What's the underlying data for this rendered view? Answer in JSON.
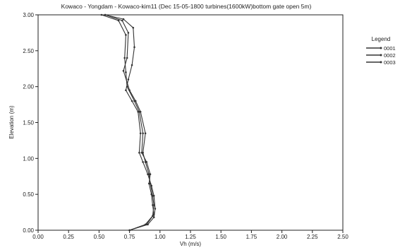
{
  "chart_data": {
    "type": "line",
    "title": "Kowaco - Yongdam - Kowaco-kim11 (Dec 15-05-1800 turbines(1600kW)bottom gate open  5m)",
    "xlabel": "Vh (m/s)",
    "ylabel": "Elevation (m)",
    "xlim": [
      0.0,
      2.5
    ],
    "ylim": [
      0.0,
      3.0
    ],
    "x_ticks": [
      "0.00",
      "0.25",
      "0.50",
      "0.75",
      "1.00",
      "1.25",
      "1.50",
      "1.75",
      "2.00",
      "2.25",
      "2.50"
    ],
    "y_ticks": [
      "0.00",
      "0.50",
      "1.00",
      "1.50",
      "2.00",
      "2.50",
      "3.00"
    ],
    "x_tick_values": [
      0,
      0.25,
      0.5,
      0.75,
      1.0,
      1.25,
      1.5,
      1.75,
      2.0,
      2.25,
      2.5
    ],
    "y_tick_values": [
      0,
      0.5,
      1.0,
      1.5,
      2.0,
      2.5,
      3.0
    ],
    "grid": false,
    "legend": {
      "title": "Legend",
      "placement": "right"
    },
    "series": [
      {
        "name": "0001",
        "color": "#333333",
        "points": [
          [
            0.75,
            0.0
          ],
          [
            0.9,
            0.08
          ],
          [
            0.95,
            0.18
          ],
          [
            0.96,
            0.3
          ],
          [
            0.95,
            0.48
          ],
          [
            0.93,
            0.62
          ],
          [
            0.9,
            0.78
          ],
          [
            0.86,
            0.95
          ],
          [
            0.83,
            1.08
          ],
          [
            0.84,
            1.35
          ],
          [
            0.82,
            1.65
          ],
          [
            0.77,
            1.8
          ],
          [
            0.72,
            1.95
          ],
          [
            0.74,
            2.1
          ],
          [
            0.77,
            2.3
          ],
          [
            0.79,
            2.55
          ],
          [
            0.78,
            2.82
          ],
          [
            0.7,
            2.94
          ],
          [
            0.55,
            3.0
          ]
        ]
      },
      {
        "name": "0002",
        "color": "#333333",
        "points": [
          [
            0.75,
            0.0
          ],
          [
            0.88,
            0.08
          ],
          [
            0.94,
            0.2
          ],
          [
            0.95,
            0.35
          ],
          [
            0.94,
            0.48
          ],
          [
            0.92,
            0.65
          ],
          [
            0.91,
            0.78
          ],
          [
            0.88,
            0.95
          ],
          [
            0.86,
            1.08
          ],
          [
            0.88,
            1.35
          ],
          [
            0.84,
            1.65
          ],
          [
            0.8,
            1.8
          ],
          [
            0.75,
            1.95
          ],
          [
            0.7,
            2.22
          ],
          [
            0.73,
            2.4
          ],
          [
            0.74,
            2.75
          ],
          [
            0.69,
            2.92
          ],
          [
            0.55,
            3.0
          ]
        ]
      },
      {
        "name": "0003",
        "color": "#333333",
        "points": [
          [
            0.75,
            0.0
          ],
          [
            0.89,
            0.08
          ],
          [
            0.95,
            0.22
          ],
          [
            0.94,
            0.35
          ],
          [
            0.93,
            0.5
          ],
          [
            0.91,
            0.65
          ],
          [
            0.92,
            0.78
          ],
          [
            0.89,
            0.95
          ],
          [
            0.85,
            1.08
          ],
          [
            0.86,
            1.35
          ],
          [
            0.83,
            1.65
          ],
          [
            0.79,
            1.8
          ],
          [
            0.73,
            2.0
          ],
          [
            0.72,
            2.2
          ],
          [
            0.71,
            2.4
          ],
          [
            0.72,
            2.72
          ],
          [
            0.66,
            2.92
          ],
          [
            0.52,
            3.0
          ]
        ]
      }
    ]
  }
}
